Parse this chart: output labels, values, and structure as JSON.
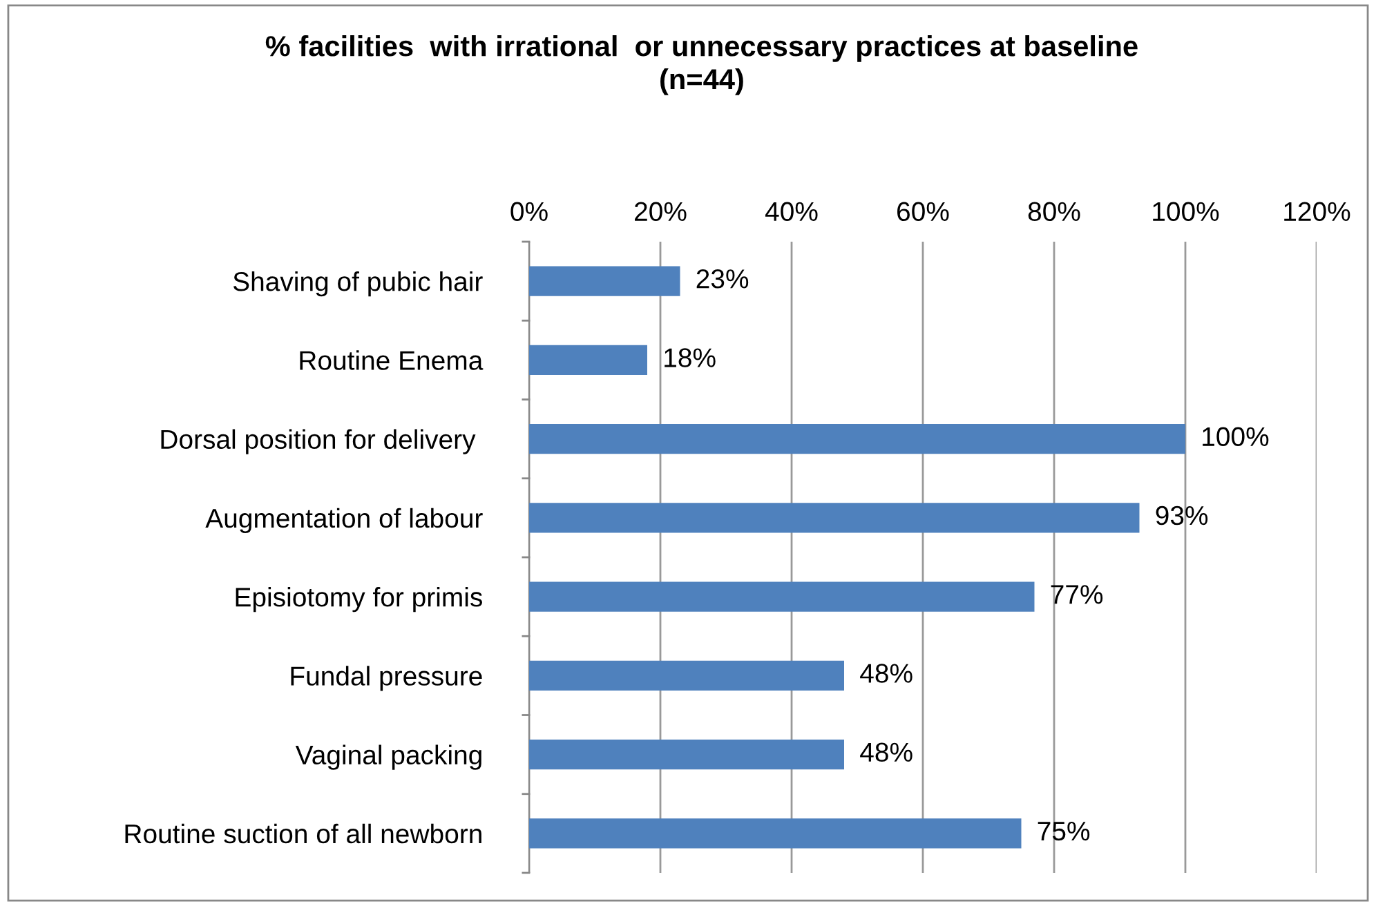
{
  "chart_data": {
    "type": "bar",
    "orientation": "horizontal",
    "title": "% facilities  with irrational  or unnecessary practices at baseline\n(n=44)",
    "categories": [
      "Shaving of pubic hair",
      "Routine Enema",
      "Dorsal position for delivery ",
      "Augmentation of labour",
      "Episiotomy for primis",
      "Fundal pressure",
      "Vaginal packing",
      "Routine suction of all newborn"
    ],
    "values": [
      23,
      18,
      100,
      93,
      77,
      48,
      48,
      75
    ],
    "value_labels": [
      "23%",
      "18%",
      "100%",
      "93%",
      "77%",
      "48%",
      "48%",
      "75%"
    ],
    "color": "#4f81bd",
    "xlim": [
      0,
      120
    ],
    "xticks": [
      {
        "value": 0,
        "label": "0%"
      },
      {
        "value": 20,
        "label": "20%"
      },
      {
        "value": 40,
        "label": "40%"
      },
      {
        "value": 60,
        "label": "60%"
      },
      {
        "value": 80,
        "label": "80%"
      },
      {
        "value": 100,
        "label": "100%"
      },
      {
        "value": 120,
        "label": "120%"
      }
    ],
    "grid": "x"
  }
}
